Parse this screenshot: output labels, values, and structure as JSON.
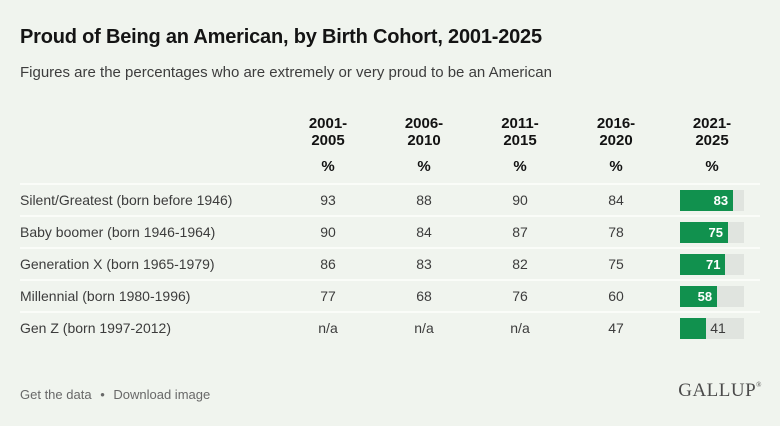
{
  "title": "Proud of Being an American, by Birth Cohort, 2001-2025",
  "subtitle": "Figures are the percentages who are extremely or very proud to be an American",
  "table": {
    "columns": [
      "2001-2005",
      "2006-2010",
      "2011-2015",
      "2016-2020",
      "2021-2025"
    ],
    "unit": "%",
    "rows": [
      {
        "label": "Silent/Greatest (born before 1946)",
        "values": [
          "93",
          "88",
          "90",
          "84"
        ],
        "bar_value": 83
      },
      {
        "label": "Baby boomer (born 1946-1964)",
        "values": [
          "90",
          "84",
          "87",
          "78"
        ],
        "bar_value": 75
      },
      {
        "label": "Generation X (born 1965-1979)",
        "values": [
          "86",
          "83",
          "82",
          "75"
        ],
        "bar_value": 71
      },
      {
        "label": "Millennial (born 1980-1996)",
        "values": [
          "77",
          "68",
          "76",
          "60"
        ],
        "bar_value": 58
      },
      {
        "label": "Gen Z (born 1997-2012)",
        "values": [
          "n/a",
          "n/a",
          "n/a",
          "47"
        ],
        "bar_value": 41
      }
    ],
    "bar_scale_max": 100
  },
  "chart_data": {
    "type": "table",
    "title": "Proud of Being an American, by Birth Cohort, 2001-2025",
    "subtitle": "Figures are the percentages who are extremely or very proud to be an American",
    "columns": [
      "2001-2005",
      "2006-2010",
      "2011-2015",
      "2016-2020",
      "2021-2025"
    ],
    "unit": "%",
    "rows": [
      {
        "cohort": "Silent/Greatest (born before 1946)",
        "values": [
          93,
          88,
          90,
          84,
          83
        ]
      },
      {
        "cohort": "Baby boomer (born 1946-1964)",
        "values": [
          90,
          84,
          87,
          78,
          75
        ]
      },
      {
        "cohort": "Generation X (born 1965-1979)",
        "values": [
          86,
          83,
          82,
          75,
          71
        ]
      },
      {
        "cohort": "Millennial (born 1980-1996)",
        "values": [
          77,
          68,
          76,
          60,
          58
        ]
      },
      {
        "cohort": "Gen Z (born 1997-2012)",
        "values": [
          null,
          null,
          null,
          47,
          41
        ]
      }
    ],
    "notes": "Last column (2021-2025) rendered as horizontal green bars scaled 0-100; n/a shown for cohorts without data",
    "bar_scale_max": 100
  },
  "footer": {
    "get_data_label": "Get the data",
    "separator": "•",
    "download_label": "Download image",
    "brand": "GALLUP",
    "brand_mark": "®"
  },
  "colors": {
    "background": "#f0f4ee",
    "bar_green": "#11914e",
    "bar_track": "#e0e4df",
    "row_separator": "#fafcf8",
    "text_dark": "#141414",
    "text_body": "#3c3c3c",
    "footer_gray": "#686868"
  }
}
